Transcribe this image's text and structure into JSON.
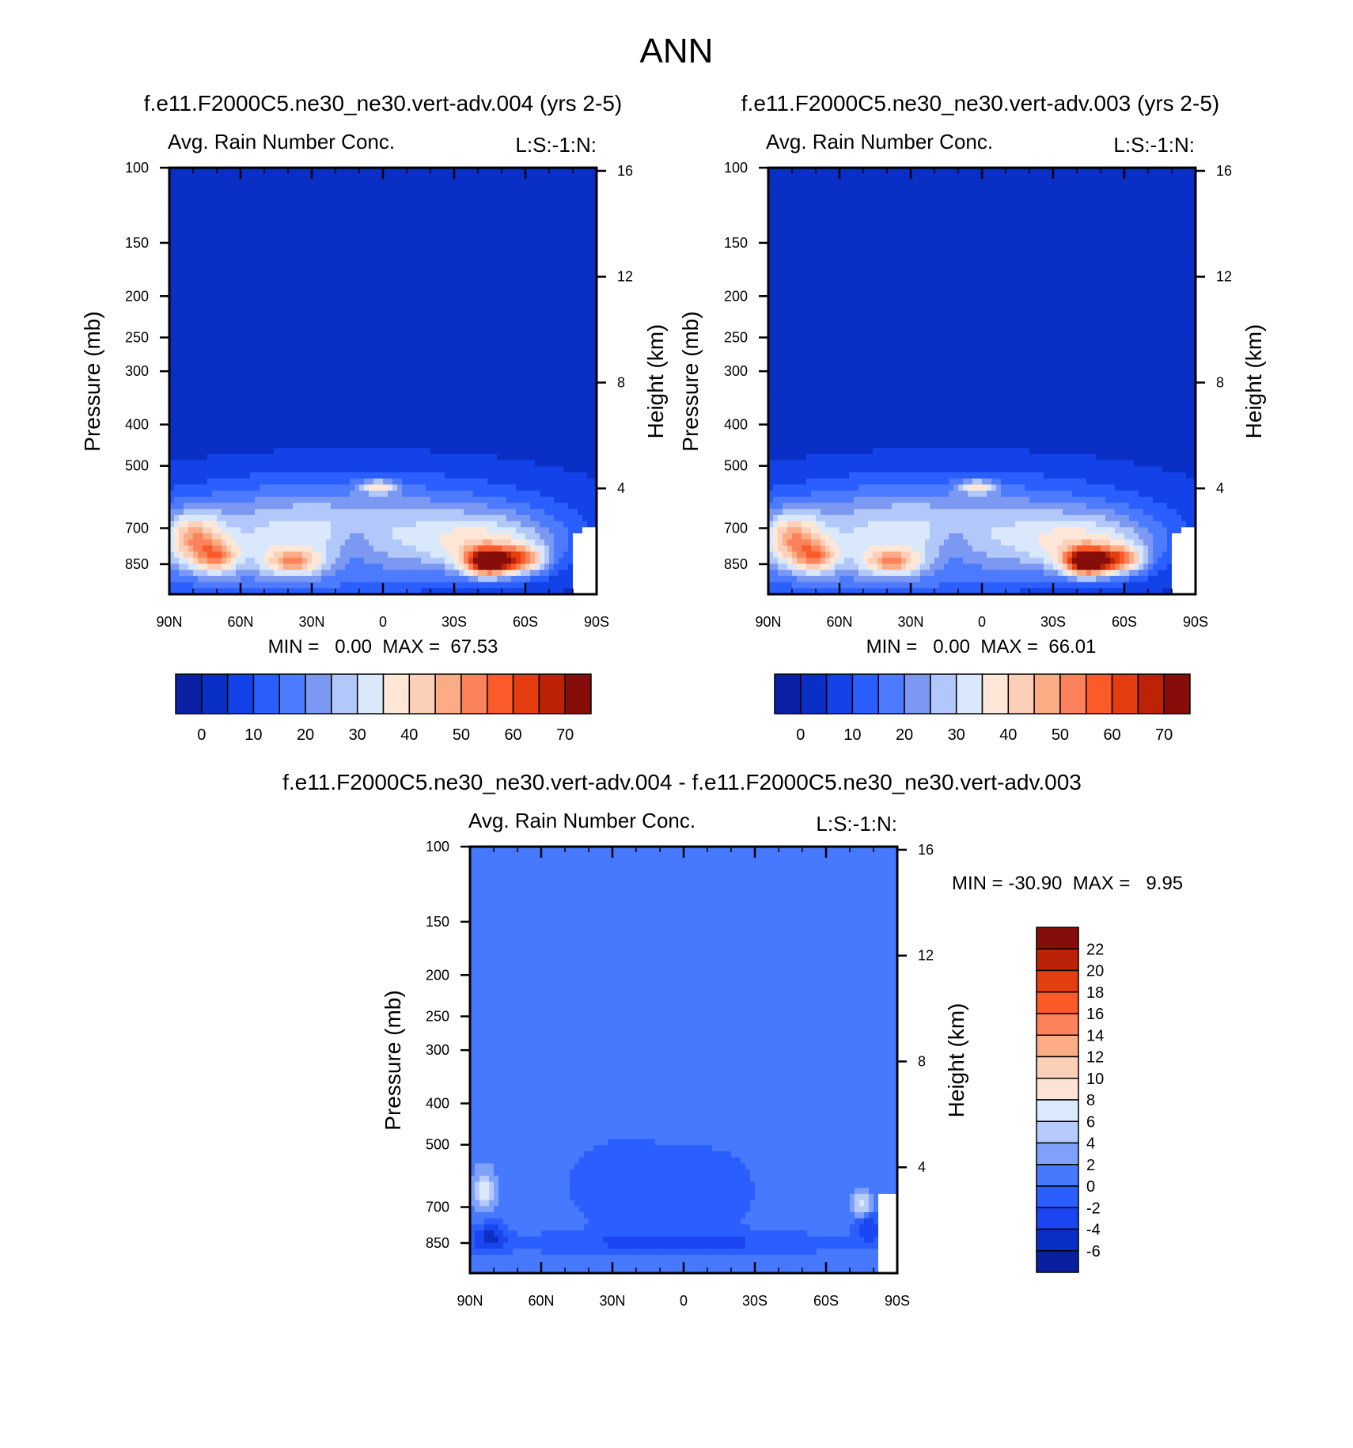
{
  "page_title": "ANN",
  "colors": {
    "field_fill": [
      "#0a21a6",
      "#0a2fc5",
      "#1343e8",
      "#2b5eff",
      "#4d7bff",
      "#7b99f2",
      "#b3c8fa",
      "#d9e8fb",
      "#ffe7d8",
      "#fcd0b8",
      "#fcac85",
      "#fb825a",
      "#fb5a29",
      "#e43d10",
      "#bb2206",
      "#870d0a"
    ],
    "diff_fill": [
      "#0a1f9e",
      "#0a2fc5",
      "#1a45f0",
      "#2b5eff",
      "#4679ff",
      "#7ea2fb",
      "#b6cbfc",
      "#dbe9fc",
      "#fde3d6",
      "#fcd0b8",
      "#fcac85",
      "#fb825a",
      "#fb5a29",
      "#e43d10",
      "#bb2206",
      "#870d0a"
    ]
  },
  "chart_data": [
    {
      "type": "heatmap",
      "title": "f.e11.F2000C5.ne30_ne30.vert-adv.004 (yrs 2-5)",
      "left_string": "Avg. Rain Number Conc.",
      "right_string": "L:S:-1:N:",
      "xlabel": "",
      "ylabel": "Pressure (mb)",
      "ylabel_right": "Height (km)",
      "x_ticks": [
        "90N",
        "60N",
        "30N",
        "0",
        "30S",
        "60S",
        "90S"
      ],
      "x_range": [
        90,
        -90
      ],
      "y_ticks": [
        100,
        150,
        200,
        250,
        300,
        400,
        500,
        700,
        850
      ],
      "y_range": [
        100,
        1000
      ],
      "y_scale": "log",
      "height_ticks": [
        16,
        12,
        8,
        4
      ],
      "min_text": "MIN =   0.00  MAX =  67.53",
      "min": 0.0,
      "max": 67.53,
      "colorbar": {
        "orientation": "horizontal",
        "levels": [
          0,
          5,
          10,
          15,
          20,
          25,
          30,
          35,
          40,
          45,
          50,
          55,
          60,
          65,
          70
        ],
        "labels": [
          "0",
          "10",
          "20",
          "30",
          "40",
          "50",
          "60",
          "70"
        ]
      },
      "background_value": 3,
      "blobs": [
        {
          "lat": 45,
          "p": 780,
          "value": 22,
          "sx": 48,
          "sy": 0.2
        },
        {
          "lat": 0,
          "p": 650,
          "value": 14,
          "sx": 55,
          "sy": 0.17
        },
        {
          "lat": 80,
          "p": 740,
          "value": 27,
          "sx": 8,
          "sy": 0.1
        },
        {
          "lat": 70,
          "p": 820,
          "value": 24,
          "sx": 6,
          "sy": 0.06
        },
        {
          "lat": 38,
          "p": 840,
          "value": 25,
          "sx": 8,
          "sy": 0.05
        },
        {
          "lat": 2,
          "p": 560,
          "value": 24,
          "sx": 5,
          "sy": 0.025
        },
        {
          "lat": -45,
          "p": 770,
          "value": 25,
          "sx": 22,
          "sy": 0.12
        },
        {
          "lat": -45,
          "p": 840,
          "value": 62,
          "sx": 7,
          "sy": 0.05
        },
        {
          "lat": -60,
          "p": 830,
          "value": 28,
          "sx": 6,
          "sy": 0.05
        },
        {
          "lat": 12,
          "p": 760,
          "value": -7,
          "sx": 7,
          "sy": 0.12
        }
      ],
      "blank_cells": [
        {
          "lat_from": -80,
          "lat_to": -90,
          "p_from": 725,
          "p_to": 1000
        },
        {
          "lat_from": -85,
          "lat_to": -90,
          "p_from": 700,
          "p_to": 1000
        }
      ]
    },
    {
      "type": "heatmap",
      "title": "f.e11.F2000C5.ne30_ne30.vert-adv.003 (yrs 2-5)",
      "left_string": "Avg. Rain Number Conc.",
      "right_string": "L:S:-1:N:",
      "xlabel": "",
      "ylabel": "Pressure (mb)",
      "ylabel_right": "Height (km)",
      "x_ticks": [
        "90N",
        "60N",
        "30N",
        "0",
        "30S",
        "60S",
        "90S"
      ],
      "x_range": [
        90,
        -90
      ],
      "y_ticks": [
        100,
        150,
        200,
        250,
        300,
        400,
        500,
        700,
        850
      ],
      "y_range": [
        100,
        1000
      ],
      "y_scale": "log",
      "height_ticks": [
        16,
        12,
        8,
        4
      ],
      "min_text": "MIN =   0.00  MAX =  66.01",
      "min": 0.0,
      "max": 66.01,
      "colorbar": {
        "orientation": "horizontal",
        "levels": [
          0,
          5,
          10,
          15,
          20,
          25,
          30,
          35,
          40,
          45,
          50,
          55,
          60,
          65,
          70
        ],
        "labels": [
          "0",
          "10",
          "20",
          "30",
          "40",
          "50",
          "60",
          "70"
        ]
      },
      "background_value": 3,
      "blobs": [
        {
          "lat": 45,
          "p": 780,
          "value": 22,
          "sx": 48,
          "sy": 0.2
        },
        {
          "lat": 0,
          "p": 650,
          "value": 14,
          "sx": 55,
          "sy": 0.17
        },
        {
          "lat": 80,
          "p": 740,
          "value": 27,
          "sx": 8,
          "sy": 0.1
        },
        {
          "lat": 70,
          "p": 820,
          "value": 24,
          "sx": 6,
          "sy": 0.06
        },
        {
          "lat": 38,
          "p": 840,
          "value": 25,
          "sx": 8,
          "sy": 0.05
        },
        {
          "lat": 2,
          "p": 560,
          "value": 24,
          "sx": 5,
          "sy": 0.025
        },
        {
          "lat": -45,
          "p": 770,
          "value": 25,
          "sx": 22,
          "sy": 0.12
        },
        {
          "lat": -45,
          "p": 840,
          "value": 61,
          "sx": 7,
          "sy": 0.05
        },
        {
          "lat": -60,
          "p": 830,
          "value": 28,
          "sx": 6,
          "sy": 0.05
        },
        {
          "lat": 12,
          "p": 760,
          "value": -7,
          "sx": 7,
          "sy": 0.12
        }
      ],
      "blank_cells": [
        {
          "lat_from": -80,
          "lat_to": -90,
          "p_from": 725,
          "p_to": 1000
        },
        {
          "lat_from": -85,
          "lat_to": -90,
          "p_from": 700,
          "p_to": 1000
        }
      ]
    },
    {
      "type": "heatmap",
      "title": "f.e11.F2000C5.ne30_ne30.vert-adv.004 - f.e11.F2000C5.ne30_ne30.vert-adv.003",
      "left_string": "Avg. Rain Number Conc.",
      "right_string": "L:S:-1:N:",
      "xlabel": "",
      "ylabel": "Pressure (mb)",
      "ylabel_right": "Height (km)",
      "x_ticks": [
        "90N",
        "60N",
        "30N",
        "0",
        "30S",
        "60S",
        "90S"
      ],
      "x_range": [
        90,
        -90
      ],
      "y_ticks": [
        100,
        150,
        200,
        250,
        300,
        400,
        500,
        700,
        850
      ],
      "y_range": [
        100,
        1000
      ],
      "y_scale": "log",
      "height_ticks": [
        16,
        12,
        8,
        4
      ],
      "min_text": "MIN = -30.90  MAX =   9.95",
      "min": -30.9,
      "max": 9.95,
      "colorbar": {
        "orientation": "vertical",
        "levels": [
          -6,
          -4,
          -2,
          0,
          2,
          4,
          6,
          8,
          10,
          12,
          14,
          16,
          18,
          20,
          22
        ],
        "labels": [
          "22",
          "20",
          "18",
          "16",
          "14",
          "12",
          "10",
          "8",
          "6",
          "4",
          "2",
          "0",
          "-2",
          "-4",
          "-6"
        ]
      },
      "background_value": 1,
      "blobs": [
        {
          "lat": 84,
          "p": 640,
          "value": 6.5,
          "sx": 3,
          "sy": 0.08
        },
        {
          "lat": -75,
          "p": 690,
          "value": 5.5,
          "sx": 3,
          "sy": 0.05
        },
        {
          "lat": 30,
          "p": 620,
          "value": -1.6,
          "sx": 18,
          "sy": 0.22
        },
        {
          "lat": -10,
          "p": 640,
          "value": -1.6,
          "sx": 20,
          "sy": 0.22
        },
        {
          "lat": 0,
          "p": 850,
          "value": -3,
          "sx": 60,
          "sy": 0.04
        },
        {
          "lat": 82,
          "p": 820,
          "value": -5,
          "sx": 5,
          "sy": 0.06
        },
        {
          "lat": -78,
          "p": 780,
          "value": -5,
          "sx": 4,
          "sy": 0.05
        }
      ],
      "blank_cells": [
        {
          "lat_from": -83,
          "lat_to": -90,
          "p_from": 650,
          "p_to": 1000
        }
      ]
    }
  ]
}
